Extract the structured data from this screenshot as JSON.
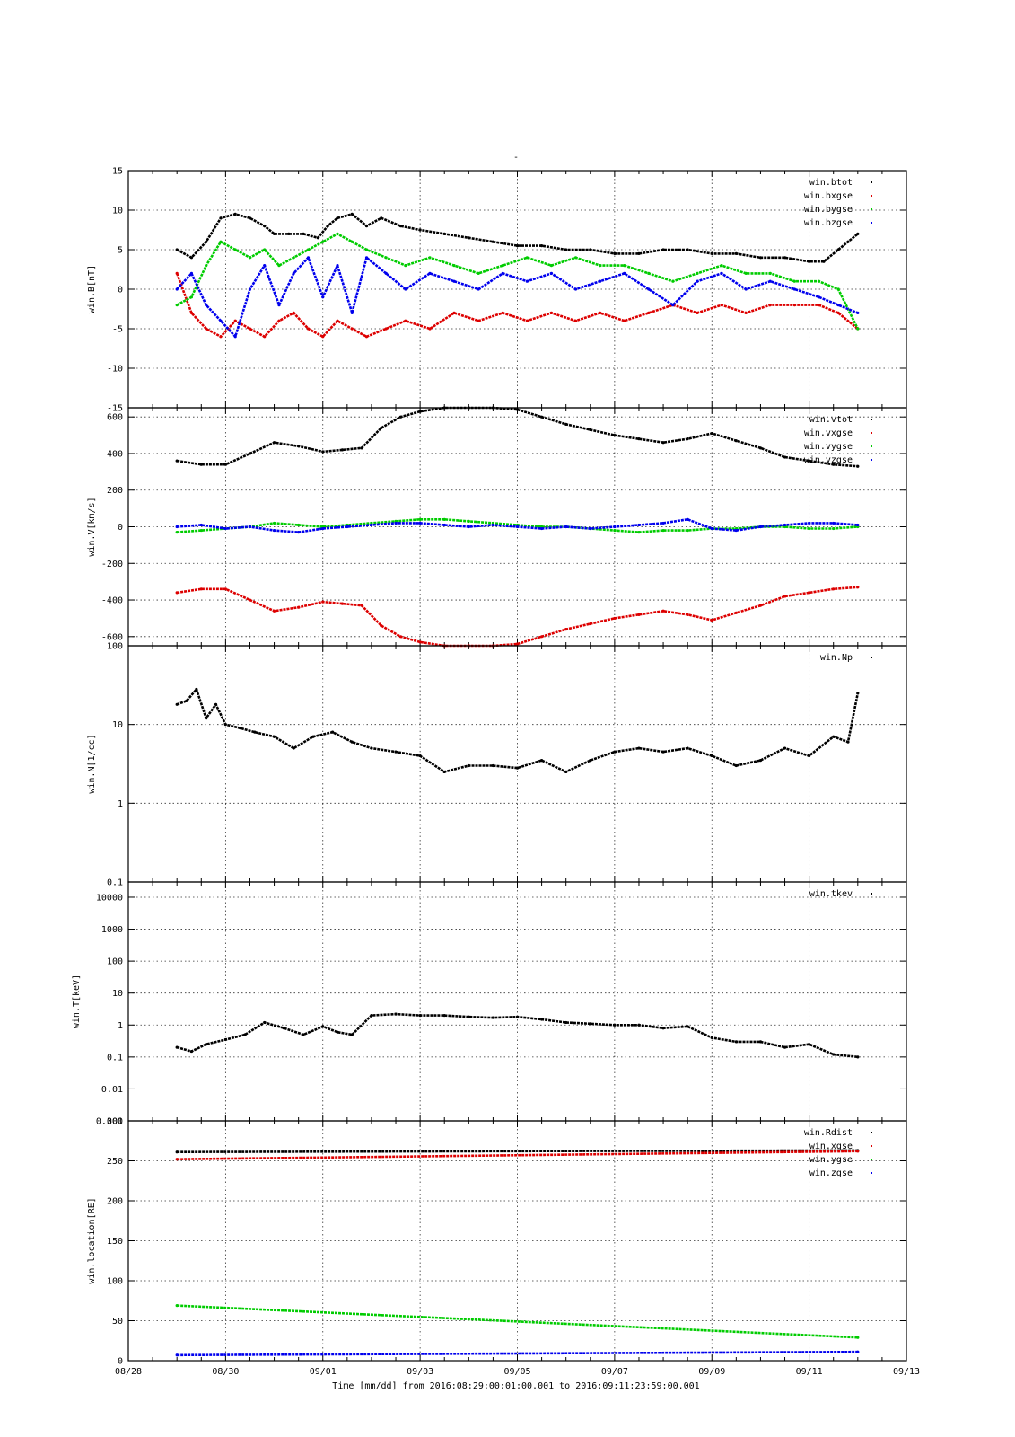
{
  "title": "-",
  "x_axis": {
    "label": "Time [mm/dd]  from 2016:08:29:00:01:00.001  to  2016:09:11:23:59:00.001",
    "ticks": [
      {
        "day": 0,
        "label": "08/28"
      },
      {
        "day": 2,
        "label": "08/30"
      },
      {
        "day": 4,
        "label": "09/01"
      },
      {
        "day": 6,
        "label": "09/03"
      },
      {
        "day": 8,
        "label": "09/05"
      },
      {
        "day": 10,
        "label": "09/07"
      },
      {
        "day": 12,
        "label": "09/09"
      },
      {
        "day": 14,
        "label": "09/11"
      },
      {
        "day": 16,
        "label": "09/13"
      }
    ]
  },
  "colors": {
    "black": "#000000",
    "red": "#dd0000",
    "green": "#00cc00",
    "blue": "#0000ee"
  },
  "chart_data": [
    {
      "type": "scatter",
      "ylabel": "win.B[nT]",
      "ylim": [
        -15,
        15
      ],
      "yscale": "linear",
      "yticks": [
        {
          "v": 15,
          "label": "15"
        },
        {
          "v": 10,
          "label": "10"
        },
        {
          "v": 5,
          "label": "5"
        },
        {
          "v": 0,
          "label": "0"
        },
        {
          "v": -5,
          "label": "-5"
        },
        {
          "v": -10,
          "label": "-10"
        },
        {
          "v": -15,
          "label": "-15"
        }
      ],
      "legend": "top-right",
      "series": [
        {
          "name": "win.btot",
          "color": "#000000",
          "x": [
            1,
            1.3,
            1.6,
            1.9,
            2.2,
            2.5,
            2.8,
            3,
            3.3,
            3.6,
            3.9,
            4.1,
            4.3,
            4.6,
            4.9,
            5.2,
            5.6,
            6,
            6.5,
            7,
            7.5,
            8,
            8.5,
            9,
            9.5,
            10,
            10.5,
            11,
            11.5,
            12,
            12.5,
            13,
            13.5,
            14,
            14.3,
            14.6,
            14.8,
            15
          ],
          "y": [
            5,
            4,
            6,
            9,
            9.5,
            9,
            8,
            7,
            7,
            7,
            6.5,
            8,
            9,
            9.5,
            8,
            9,
            8,
            7.5,
            7,
            6.5,
            6,
            5.5,
            5.5,
            5,
            5,
            4.5,
            4.5,
            5,
            5,
            4.5,
            4.5,
            4,
            4,
            3.5,
            3.5,
            5,
            6,
            7
          ]
        },
        {
          "name": "win.bxgse",
          "color": "#dd0000",
          "x": [
            1,
            1.3,
            1.6,
            1.9,
            2.2,
            2.5,
            2.8,
            3.1,
            3.4,
            3.7,
            4,
            4.3,
            4.6,
            4.9,
            5.3,
            5.7,
            6.2,
            6.7,
            7.2,
            7.7,
            8.2,
            8.7,
            9.2,
            9.7,
            10.2,
            10.7,
            11.2,
            11.7,
            12.2,
            12.7,
            13.2,
            13.7,
            14.2,
            14.6,
            15
          ],
          "y": [
            2,
            -3,
            -5,
            -6,
            -4,
            -5,
            -6,
            -4,
            -3,
            -5,
            -6,
            -4,
            -5,
            -6,
            -5,
            -4,
            -5,
            -3,
            -4,
            -3,
            -4,
            -3,
            -4,
            -3,
            -4,
            -3,
            -2,
            -3,
            -2,
            -3,
            -2,
            -2,
            -2,
            -3,
            -5
          ]
        },
        {
          "name": "win.bygse",
          "color": "#00cc00",
          "x": [
            1,
            1.3,
            1.6,
            1.9,
            2.2,
            2.5,
            2.8,
            3.1,
            3.4,
            3.7,
            4,
            4.3,
            4.6,
            4.9,
            5.3,
            5.7,
            6.2,
            6.7,
            7.2,
            7.7,
            8.2,
            8.7,
            9.2,
            9.7,
            10.2,
            10.7,
            11.2,
            11.7,
            12.2,
            12.7,
            13.2,
            13.7,
            14.2,
            14.6,
            15
          ],
          "y": [
            -2,
            -1,
            3,
            6,
            5,
            4,
            5,
            3,
            4,
            5,
            6,
            7,
            6,
            5,
            4,
            3,
            4,
            3,
            2,
            3,
            4,
            3,
            4,
            3,
            3,
            2,
            1,
            2,
            3,
            2,
            2,
            1,
            1,
            0,
            -5
          ]
        },
        {
          "name": "win.bzgse",
          "color": "#0000ee",
          "x": [
            1,
            1.3,
            1.6,
            1.9,
            2.2,
            2.5,
            2.8,
            3.1,
            3.4,
            3.7,
            4,
            4.3,
            4.6,
            4.9,
            5.3,
            5.7,
            6.2,
            6.7,
            7.2,
            7.7,
            8.2,
            8.7,
            9.2,
            9.7,
            10.2,
            10.7,
            11.2,
            11.7,
            12.2,
            12.7,
            13.2,
            13.7,
            14.2,
            14.6,
            15
          ],
          "y": [
            0,
            2,
            -2,
            -4,
            -6,
            0,
            3,
            -2,
            2,
            4,
            -1,
            3,
            -3,
            4,
            2,
            0,
            2,
            1,
            0,
            2,
            1,
            2,
            0,
            1,
            2,
            0,
            -2,
            1,
            2,
            0,
            1,
            0,
            -1,
            -2,
            -3
          ]
        }
      ]
    },
    {
      "type": "scatter",
      "ylabel": "win.V[km/s]",
      "ylim": [
        -650,
        650
      ],
      "yscale": "linear",
      "yticks": [
        {
          "v": 600,
          "label": "600"
        },
        {
          "v": 400,
          "label": "400"
        },
        {
          "v": 200,
          "label": "200"
        },
        {
          "v": 0,
          "label": "0"
        },
        {
          "v": -200,
          "label": "-200"
        },
        {
          "v": -400,
          "label": "-400"
        },
        {
          "v": -600,
          "label": "-600"
        }
      ],
      "legend": "top-right",
      "series": [
        {
          "name": "win.vtot",
          "color": "#000000",
          "x": [
            1,
            1.5,
            2,
            2.5,
            3,
            3.5,
            4,
            4.4,
            4.8,
            5.2,
            5.6,
            6,
            6.5,
            7,
            7.5,
            8,
            8.5,
            9,
            9.5,
            10,
            10.5,
            11,
            11.5,
            12,
            12.5,
            13,
            13.5,
            14,
            14.5,
            15
          ],
          "y": [
            360,
            340,
            340,
            400,
            460,
            440,
            410,
            420,
            430,
            540,
            600,
            630,
            650,
            650,
            650,
            640,
            600,
            560,
            530,
            500,
            480,
            460,
            480,
            510,
            470,
            430,
            380,
            360,
            340,
            330
          ]
        },
        {
          "name": "win.vxgse",
          "color": "#dd0000",
          "x": [
            1,
            1.5,
            2,
            2.5,
            3,
            3.5,
            4,
            4.4,
            4.8,
            5.2,
            5.6,
            6,
            6.5,
            7,
            7.5,
            8,
            8.5,
            9,
            9.5,
            10,
            10.5,
            11,
            11.5,
            12,
            12.5,
            13,
            13.5,
            14,
            14.5,
            15
          ],
          "y": [
            -360,
            -340,
            -340,
            -400,
            -460,
            -440,
            -410,
            -420,
            -430,
            -540,
            -600,
            -630,
            -650,
            -650,
            -650,
            -640,
            -600,
            -560,
            -530,
            -500,
            -480,
            -460,
            -480,
            -510,
            -470,
            -430,
            -380,
            -360,
            -340,
            -330
          ]
        },
        {
          "name": "win.vygse",
          "color": "#00cc00",
          "x": [
            1,
            1.5,
            2,
            2.5,
            3,
            3.5,
            4,
            4.5,
            5,
            5.5,
            6,
            6.5,
            7,
            7.5,
            8,
            8.5,
            9,
            9.5,
            10,
            10.5,
            11,
            11.5,
            12,
            12.5,
            13,
            13.5,
            14,
            14.5,
            15
          ],
          "y": [
            -30,
            -20,
            -10,
            0,
            20,
            10,
            0,
            10,
            20,
            30,
            40,
            40,
            30,
            20,
            10,
            0,
            0,
            -10,
            -20,
            -30,
            -20,
            -20,
            -10,
            -10,
            0,
            0,
            -10,
            -10,
            0
          ]
        },
        {
          "name": "win.vzgse",
          "color": "#0000ee",
          "x": [
            1,
            1.5,
            2,
            2.5,
            3,
            3.5,
            4,
            4.5,
            5,
            5.5,
            6,
            6.5,
            7,
            7.5,
            8,
            8.5,
            9,
            9.5,
            10,
            10.5,
            11,
            11.5,
            12,
            12.5,
            13,
            13.5,
            14,
            14.5,
            15
          ],
          "y": [
            0,
            10,
            -10,
            0,
            -20,
            -30,
            -10,
            0,
            10,
            20,
            20,
            10,
            0,
            10,
            0,
            -10,
            0,
            -10,
            0,
            10,
            20,
            40,
            -10,
            -20,
            0,
            10,
            20,
            20,
            10
          ]
        }
      ]
    },
    {
      "type": "scatter",
      "ylabel": "win.N[1/cc]",
      "ylim": [
        0.1,
        100
      ],
      "yscale": "log",
      "yticks": [
        {
          "v": 100,
          "label": "100"
        },
        {
          "v": 10,
          "label": "10"
        },
        {
          "v": 1,
          "label": "1"
        },
        {
          "v": 0.1,
          "label": "0.1"
        }
      ],
      "legend": "top-right",
      "series": [
        {
          "name": "win.Np",
          "color": "#000000",
          "x": [
            1,
            1.2,
            1.4,
            1.6,
            1.8,
            2,
            2.3,
            2.6,
            3,
            3.4,
            3.8,
            4.2,
            4.6,
            5,
            5.5,
            6,
            6.5,
            7,
            7.5,
            8,
            8.5,
            9,
            9.5,
            10,
            10.5,
            11,
            11.5,
            12,
            12.5,
            13,
            13.5,
            14,
            14.5,
            14.8,
            15
          ],
          "y": [
            18,
            20,
            28,
            12,
            18,
            10,
            9,
            8,
            7,
            5,
            7,
            8,
            6,
            5,
            4.5,
            4,
            2.5,
            3,
            3,
            2.8,
            3.5,
            2.5,
            3.5,
            4.5,
            5,
            4.5,
            5,
            4,
            3,
            3.5,
            5,
            4,
            7,
            6,
            25
          ]
        }
      ]
    },
    {
      "type": "scatter",
      "ylabel": "win.T[keV]",
      "ylim": [
        0.001,
        30000
      ],
      "yscale": "log",
      "yticks": [
        {
          "v": 10000,
          "label": "10000"
        },
        {
          "v": 1000,
          "label": "1000"
        },
        {
          "v": 100,
          "label": "100"
        },
        {
          "v": 10,
          "label": "10"
        },
        {
          "v": 1,
          "label": "1"
        },
        {
          "v": 0.1,
          "label": "0.1"
        },
        {
          "v": 0.01,
          "label": "0.01"
        },
        {
          "v": 0.001,
          "label": "0.001"
        }
      ],
      "legend": "top-right",
      "series": [
        {
          "name": "win.tkev",
          "color": "#000000",
          "x": [
            1,
            1.3,
            1.6,
            2,
            2.4,
            2.8,
            3.2,
            3.6,
            4,
            4.3,
            4.6,
            5,
            5.5,
            6,
            6.5,
            7,
            7.5,
            8,
            8.5,
            9,
            9.5,
            10,
            10.5,
            11,
            11.5,
            12,
            12.5,
            13,
            13.5,
            14,
            14.5,
            15
          ],
          "y": [
            0.2,
            0.15,
            0.25,
            0.35,
            0.5,
            1.2,
            0.8,
            0.5,
            0.9,
            0.6,
            0.5,
            2,
            2.2,
            2,
            2,
            1.8,
            1.7,
            1.8,
            1.5,
            1.2,
            1.1,
            1,
            1,
            0.8,
            0.9,
            0.4,
            0.3,
            0.3,
            0.2,
            0.25,
            0.12,
            0.1
          ]
        }
      ]
    },
    {
      "type": "scatter",
      "ylabel": "win.location[RE]",
      "ylim": [
        0,
        300
      ],
      "yscale": "linear",
      "yticks": [
        {
          "v": 300,
          "label": "300"
        },
        {
          "v": 250,
          "label": "250"
        },
        {
          "v": 200,
          "label": "200"
        },
        {
          "v": 150,
          "label": "150"
        },
        {
          "v": 100,
          "label": "100"
        },
        {
          "v": 50,
          "label": "50"
        },
        {
          "v": 0,
          "label": "0"
        }
      ],
      "legend": "top-right",
      "series": [
        {
          "name": "win.Rdist",
          "color": "#000000",
          "x": [
            1,
            15
          ],
          "y": [
            261,
            263
          ]
        },
        {
          "name": "win.xgse",
          "color": "#dd0000",
          "x": [
            1,
            15
          ],
          "y": [
            252,
            262
          ]
        },
        {
          "name": "win.ygse",
          "color": "#00cc00",
          "x": [
            1,
            15
          ],
          "y": [
            69,
            29
          ]
        },
        {
          "name": "win.zgse",
          "color": "#0000ee",
          "x": [
            1,
            15
          ],
          "y": [
            7,
            11
          ]
        }
      ]
    }
  ]
}
